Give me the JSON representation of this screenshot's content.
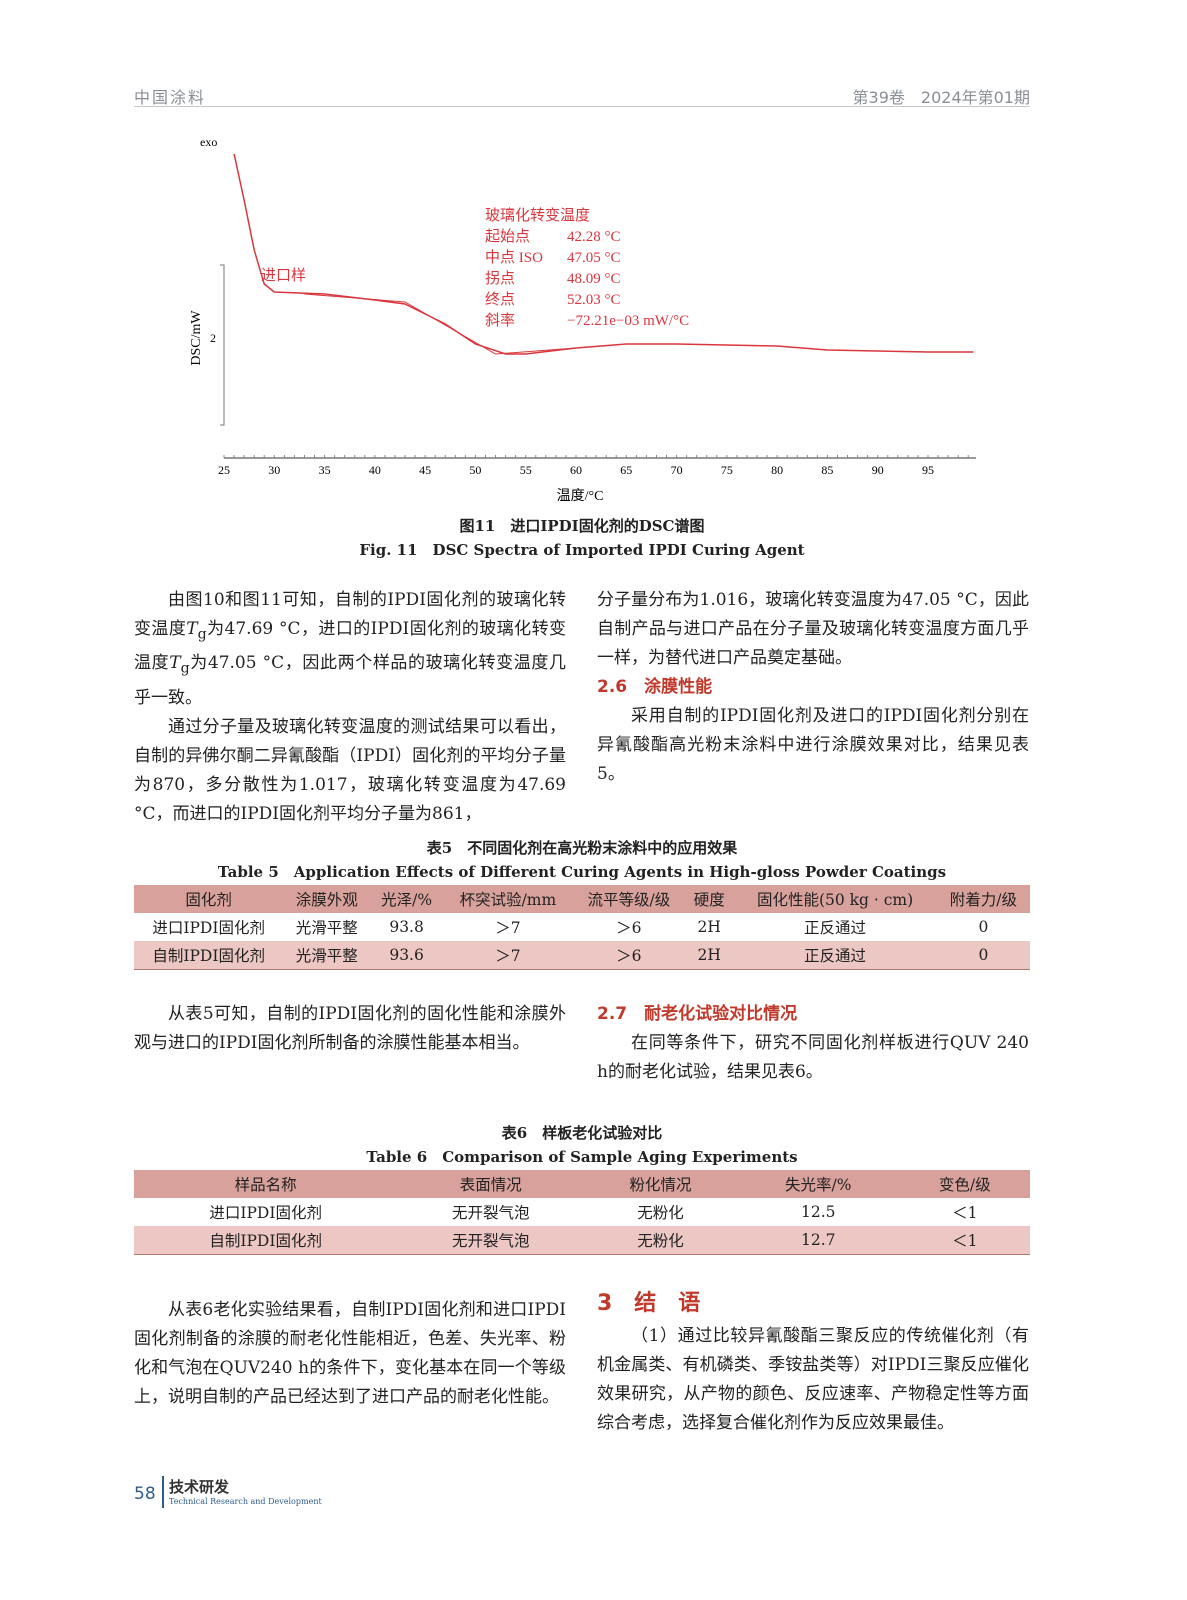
{
  "header": {
    "journal": "中国涂料",
    "issue": "第39卷　2024年第01期"
  },
  "figure11": {
    "caption_cn": "图11　进口IPDI固化剂的DSC谱图",
    "caption_en": "Fig. 11　DSC Spectra of Imported IPDI Curing Agent"
  },
  "chart_data": {
    "type": "line",
    "xlabel": "温度/°C",
    "ylabel": "DSC/mW",
    "top_label": "exo",
    "xlim": [
      25,
      100
    ],
    "ylim": [
      1.5,
      3.0
    ],
    "xticks": [
      25,
      30,
      35,
      40,
      45,
      50,
      55,
      60,
      65,
      70,
      75,
      80,
      85,
      90,
      95
    ],
    "yticks": [
      2
    ],
    "series": [
      {
        "name": "进口样",
        "x": [
          26,
          27,
          28,
          29,
          30,
          35,
          40,
          43,
          47,
          50,
          53,
          55,
          60,
          65,
          70,
          80,
          85,
          95,
          99.5
        ],
        "y": [
          2.92,
          2.69,
          2.44,
          2.27,
          2.23,
          2.22,
          2.19,
          2.17,
          2.07,
          1.97,
          1.92,
          1.92,
          1.95,
          1.97,
          1.97,
          1.96,
          1.94,
          1.93,
          1.93
        ]
      }
    ],
    "annotation": {
      "title": "玻璃化转变温度",
      "rows": [
        [
          "起始点",
          "42.28 °C"
        ],
        [
          "中点 ISO",
          "47.05 °C"
        ],
        [
          "拐点",
          "48.09 °C"
        ],
        [
          "终点",
          "52.03 °C"
        ],
        [
          "斜率",
          "−72.21e−03 mW/°C"
        ]
      ]
    },
    "color": "#d9363e"
  },
  "left1": {
    "p1a": "由图10和图11可知，自制的IPDI固化剂的玻璃化转变温度",
    "T": "T",
    "g": "g",
    "p1b": "为47.69 °C，进口的IPDI固化剂的玻璃化转变温度",
    "p1c": "为47.05 °C，因此两个样品的玻璃化转变温度几乎一致。",
    "p2": "通过分子量及玻璃化转变温度的测试结果可以看出，自制的异佛尔酮二异氰酸酯（IPDI）固化剂的平均分子量为870，多分散性为1.017，玻璃化转变温度为47.69 °C，而进口的IPDI固化剂平均分子量为861，"
  },
  "right1": {
    "p1": "分子量分布为1.016，玻璃化转变温度为47.05 °C，因此自制产品与进口产品在分子量及玻璃化转变温度方面几乎一样，为替代进口产品奠定基础。",
    "heading": "2.6　涂膜性能",
    "p2": "采用自制的IPDI固化剂及进口的IPDI固化剂分别在异氰酸酯高光粉末涂料中进行涂膜效果对比，结果见表5。"
  },
  "table5": {
    "caption_cn": "表5　不同固化剂在高光粉末涂料中的应用效果",
    "caption_en": "Table 5　Application Effects of Different Curing Agents in High-gloss Powder Coatings",
    "headers": [
      "固化剂",
      "涂膜外观",
      "光泽/%",
      "杯突试验/mm",
      "流平等级/级",
      "硬度",
      "固化性能(50 kg · cm)",
      "附着力/级"
    ],
    "rows": [
      [
        "进口IPDI固化剂",
        "光滑平整",
        "93.8",
        "＞7",
        "＞6",
        "2H",
        "正反通过",
        "0"
      ],
      [
        "自制IPDI固化剂",
        "光滑平整",
        "93.6",
        "＞7",
        "＞6",
        "2H",
        "正反通过",
        "0"
      ]
    ]
  },
  "left2": {
    "p1": "从表5可知，自制的IPDI固化剂的固化性能和涂膜外观与进口的IPDI固化剂所制备的涂膜性能基本相当。"
  },
  "right2": {
    "heading": "2.7　耐老化试验对比情况",
    "p1": "在同等条件下，研究不同固化剂样板进行QUV 240 h的耐老化试验，结果见表6。"
  },
  "table6": {
    "caption_cn": "表6　样板老化试验对比",
    "caption_en": "Table 6　Comparison of Sample Aging Experiments",
    "headers": [
      "样品名称",
      "表面情况",
      "粉化情况",
      "失光率/%",
      "变色/级"
    ],
    "rows": [
      [
        "进口IPDI固化剂",
        "无开裂气泡",
        "无粉化",
        "12.5",
        "＜1"
      ],
      [
        "自制IPDI固化剂",
        "无开裂气泡",
        "无粉化",
        "12.7",
        "＜1"
      ]
    ]
  },
  "left3": {
    "p1": "从表6老化实验结果看，自制IPDI固化剂和进口IPDI固化剂制备的涂膜的耐老化性能相近，色差、失光率、粉化和气泡在QUV240 h的条件下，变化基本在同一个等级上，说明自制的产品已经达到了进口产品的耐老化性能。"
  },
  "right3": {
    "heading": "3　结　语",
    "p1": "（1）通过比较异氰酸酯三聚反应的传统催化剂（有机金属类、有机磷类、季铵盐类等）对IPDI三聚反应催化效果研究，从产物的颜色、反应速率、产物稳定性等方面综合考虑，选择复合催化剂作为反应效果最佳。"
  },
  "footer": {
    "page": "58",
    "section_cn": "技术研发",
    "section_en": "Technical Research and Development"
  }
}
